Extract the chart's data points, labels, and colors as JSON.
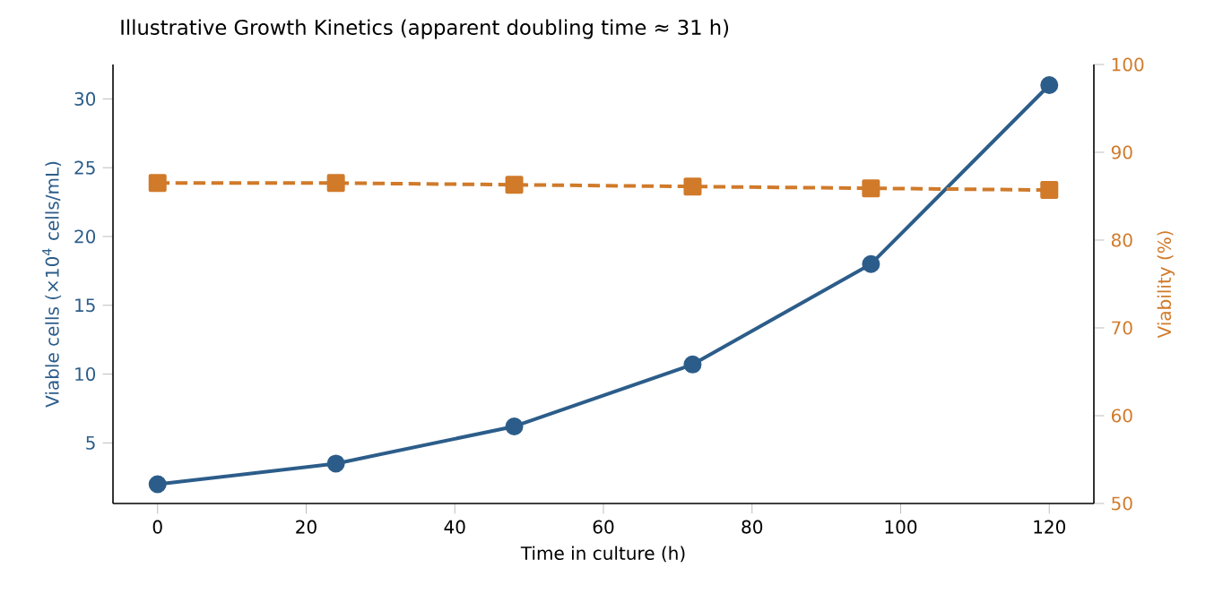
{
  "chart_data": {
    "type": "line",
    "title": "Illustrative Growth Kinetics (apparent doubling time ≈ 31 h)",
    "xlabel": "Time in culture (h)",
    "ylabel": "Viable cells (×10$^{4}$ cells/mL)",
    "y2label": "Viability (%)",
    "x": [
      0,
      24,
      48,
      72,
      96,
      120
    ],
    "series": [
      {
        "color": "#2c5d8a",
        "values": [
          2.0,
          3.5,
          6.2,
          10.7,
          18.0,
          31.0
        ],
        "marker": "circle",
        "line_style": "solid"
      },
      {
        "color": "#d07a2a",
        "values": [
          86.5,
          86.5,
          86.3,
          86.1,
          85.9,
          85.7
        ],
        "marker": "square",
        "line_style": "dashed",
        "axis": "y2"
      }
    ],
    "xlim": [
      -6,
      126
    ],
    "ylim": [
      0.6,
      32.5
    ],
    "y2lim": [
      50,
      100
    ],
    "xticks": [
      0,
      20,
      40,
      60,
      80,
      100,
      120
    ],
    "yticks": [
      5,
      10,
      15,
      20,
      25,
      30
    ],
    "y2ticks": [
      50,
      60,
      70,
      80,
      90,
      100
    ]
  }
}
